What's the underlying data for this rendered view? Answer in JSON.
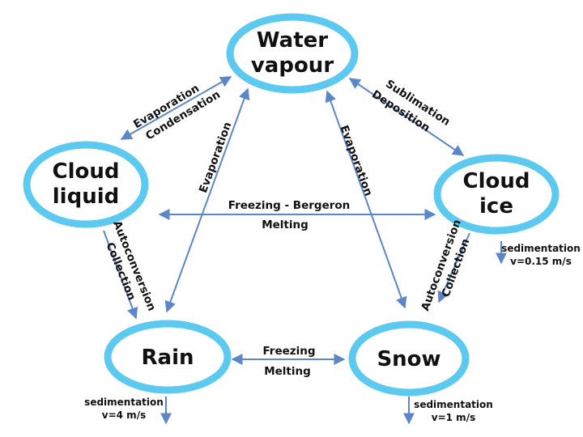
{
  "nodes": {
    "water_vapour": {
      "line1": "Water",
      "line2": "vapour"
    },
    "cloud_liquid": {
      "line1": "Cloud",
      "line2": "liquid"
    },
    "cloud_ice": {
      "line1": "Cloud",
      "line2": "ice"
    },
    "rain": {
      "line1": "Rain"
    },
    "snow": {
      "line1": "Snow"
    }
  },
  "labels": {
    "vapour_liquid": {
      "line1": "Evaporation",
      "line2": "Condensation"
    },
    "vapour_ice": {
      "line1": "Sublimation",
      "line2": "Deposition"
    },
    "vapour_rain": "Evaporation",
    "vapour_snow": "Evaporation",
    "liquid_ice": {
      "line1": "Freezing - Bergeron",
      "line2": "Melting"
    },
    "liquid_rain": {
      "line1": "Autoconversion",
      "line2": "Collection"
    },
    "ice_snow": {
      "line1": "Autoconversion",
      "line2": "Collection"
    },
    "rain_snow": {
      "line1": "Freezing",
      "line2": "Melting"
    }
  },
  "sedimentation": {
    "ice": {
      "line1": "sedimentation",
      "line2": "v=0.15 m/s"
    },
    "rain": {
      "line1": "sedimentation",
      "line2": "v=4 m/s"
    },
    "snow": {
      "line1": "sedimentation",
      "line2": "v=1 m/s"
    }
  },
  "colors": {
    "ellipse_stroke": "#5ccaf0",
    "arrow": "#5b86c7"
  }
}
